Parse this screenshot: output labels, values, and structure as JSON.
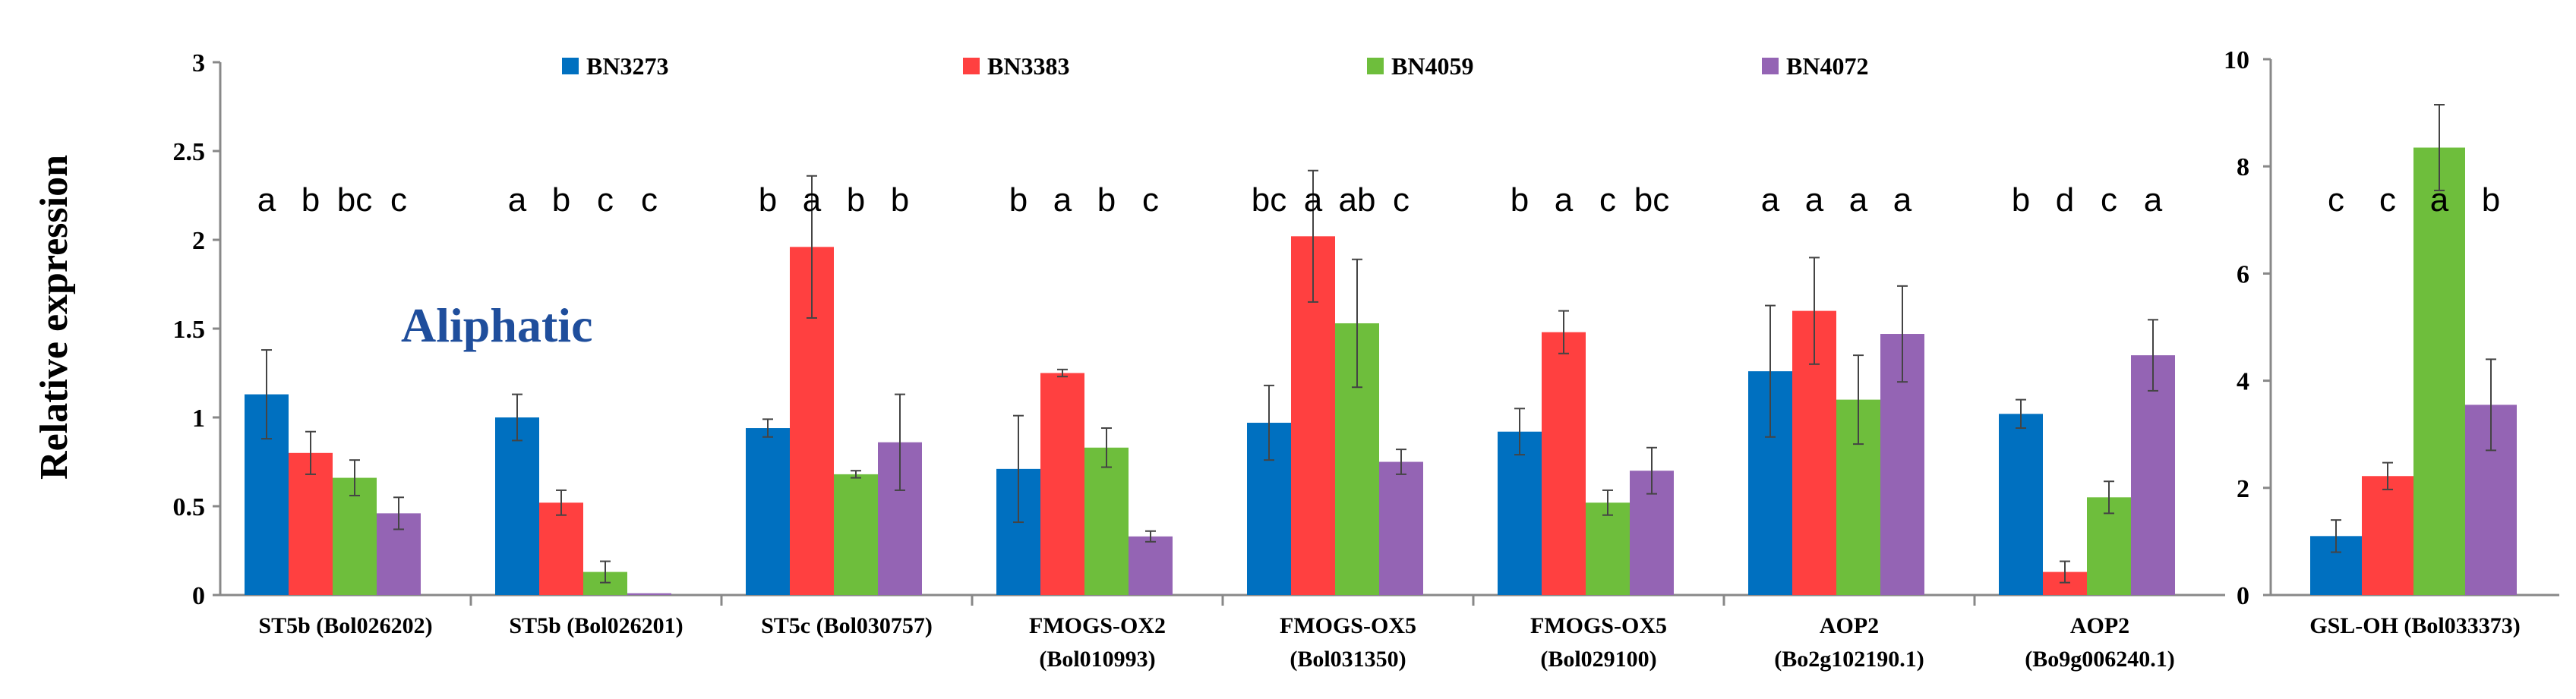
{
  "chart_data": [
    {
      "type": "bar",
      "ylabel": "Relative expression",
      "ylim": [
        0,
        3
      ],
      "yticks": [
        "0",
        "0.5",
        "1",
        "1.5",
        "2",
        "2.5",
        "3"
      ],
      "yticks_values": [
        0,
        0.5,
        1,
        1.5,
        2,
        2.5,
        3
      ],
      "annotation": "Aliphatic",
      "legend_position": "top",
      "grid": false,
      "series_names": [
        "BN3273",
        "BN3383",
        "BN4059",
        "BN4072"
      ],
      "colors": [
        "#0070c0",
        "#ff4040",
        "#6ebe3c",
        "#9464b4"
      ],
      "groups": [
        {
          "label": [
            "ST5b (Bol026202)"
          ],
          "values": [
            1.13,
            0.8,
            0.66,
            0.46
          ],
          "errors": [
            0.25,
            0.12,
            0.1,
            0.09
          ],
          "letters": [
            "a",
            "b",
            "bc",
            "c"
          ]
        },
        {
          "label": [
            "ST5b (Bol026201)"
          ],
          "values": [
            1.0,
            0.52,
            0.13,
            0.01
          ],
          "errors": [
            0.13,
            0.07,
            0.06,
            0.0
          ],
          "letters": [
            "a",
            "b",
            "c",
            "c"
          ]
        },
        {
          "label": [
            "ST5c (Bol030757)"
          ],
          "values": [
            0.94,
            1.96,
            0.68,
            0.86
          ],
          "errors": [
            0.05,
            0.4,
            0.02,
            0.27
          ],
          "letters": [
            "b",
            "a",
            "b",
            "b"
          ]
        },
        {
          "label": [
            "FMOGS-OX2",
            "(Bol010993)"
          ],
          "values": [
            0.71,
            1.25,
            0.83,
            0.33
          ],
          "errors": [
            0.3,
            0.02,
            0.11,
            0.03
          ],
          "letters": [
            "b",
            "a",
            "b",
            "c"
          ]
        },
        {
          "label": [
            "FMOGS-OX5",
            "(Bol031350)"
          ],
          "values": [
            0.97,
            2.02,
            1.53,
            0.75
          ],
          "errors": [
            0.21,
            0.37,
            0.36,
            0.07
          ],
          "letters": [
            "bc",
            "a",
            "ab",
            "c"
          ]
        },
        {
          "label": [
            "FMOGS-OX5",
            "(Bol029100)"
          ],
          "values": [
            0.92,
            1.48,
            0.52,
            0.7
          ],
          "errors": [
            0.13,
            0.12,
            0.07,
            0.13
          ],
          "letters": [
            "b",
            "a",
            "c",
            "bc"
          ]
        },
        {
          "label": [
            "AOP2",
            "(Bo2g102190.1)"
          ],
          "values": [
            1.26,
            1.6,
            1.1,
            1.47
          ],
          "errors": [
            0.37,
            0.3,
            0.25,
            0.27
          ],
          "letters": [
            "a",
            "a",
            "a",
            "a"
          ]
        },
        {
          "label": [
            "AOP2",
            "(Bo9g006240.1)"
          ],
          "values": [
            1.02,
            0.13,
            0.55,
            1.35
          ],
          "errors": [
            0.08,
            0.06,
            0.09,
            0.2
          ],
          "letters": [
            "b",
            "d",
            "c",
            "a"
          ]
        }
      ]
    },
    {
      "type": "bar",
      "ylim": [
        0,
        10
      ],
      "yticks": [
        "0",
        "2",
        "4",
        "6",
        "8",
        "10"
      ],
      "yticks_values": [
        0,
        2,
        4,
        6,
        8,
        10
      ],
      "series_names": [
        "BN3273",
        "BN3383",
        "BN4059",
        "BN4072"
      ],
      "colors": [
        "#0070c0",
        "#ff4040",
        "#6ebe3c",
        "#9464b4"
      ],
      "groups": [
        {
          "label": [
            "GSL-OH (Bol033373)"
          ],
          "values": [
            1.1,
            2.22,
            8.35,
            3.55
          ],
          "errors": [
            0.3,
            0.25,
            0.8,
            0.85
          ],
          "letters": [
            "c",
            "c",
            "a",
            "b"
          ]
        }
      ]
    }
  ]
}
